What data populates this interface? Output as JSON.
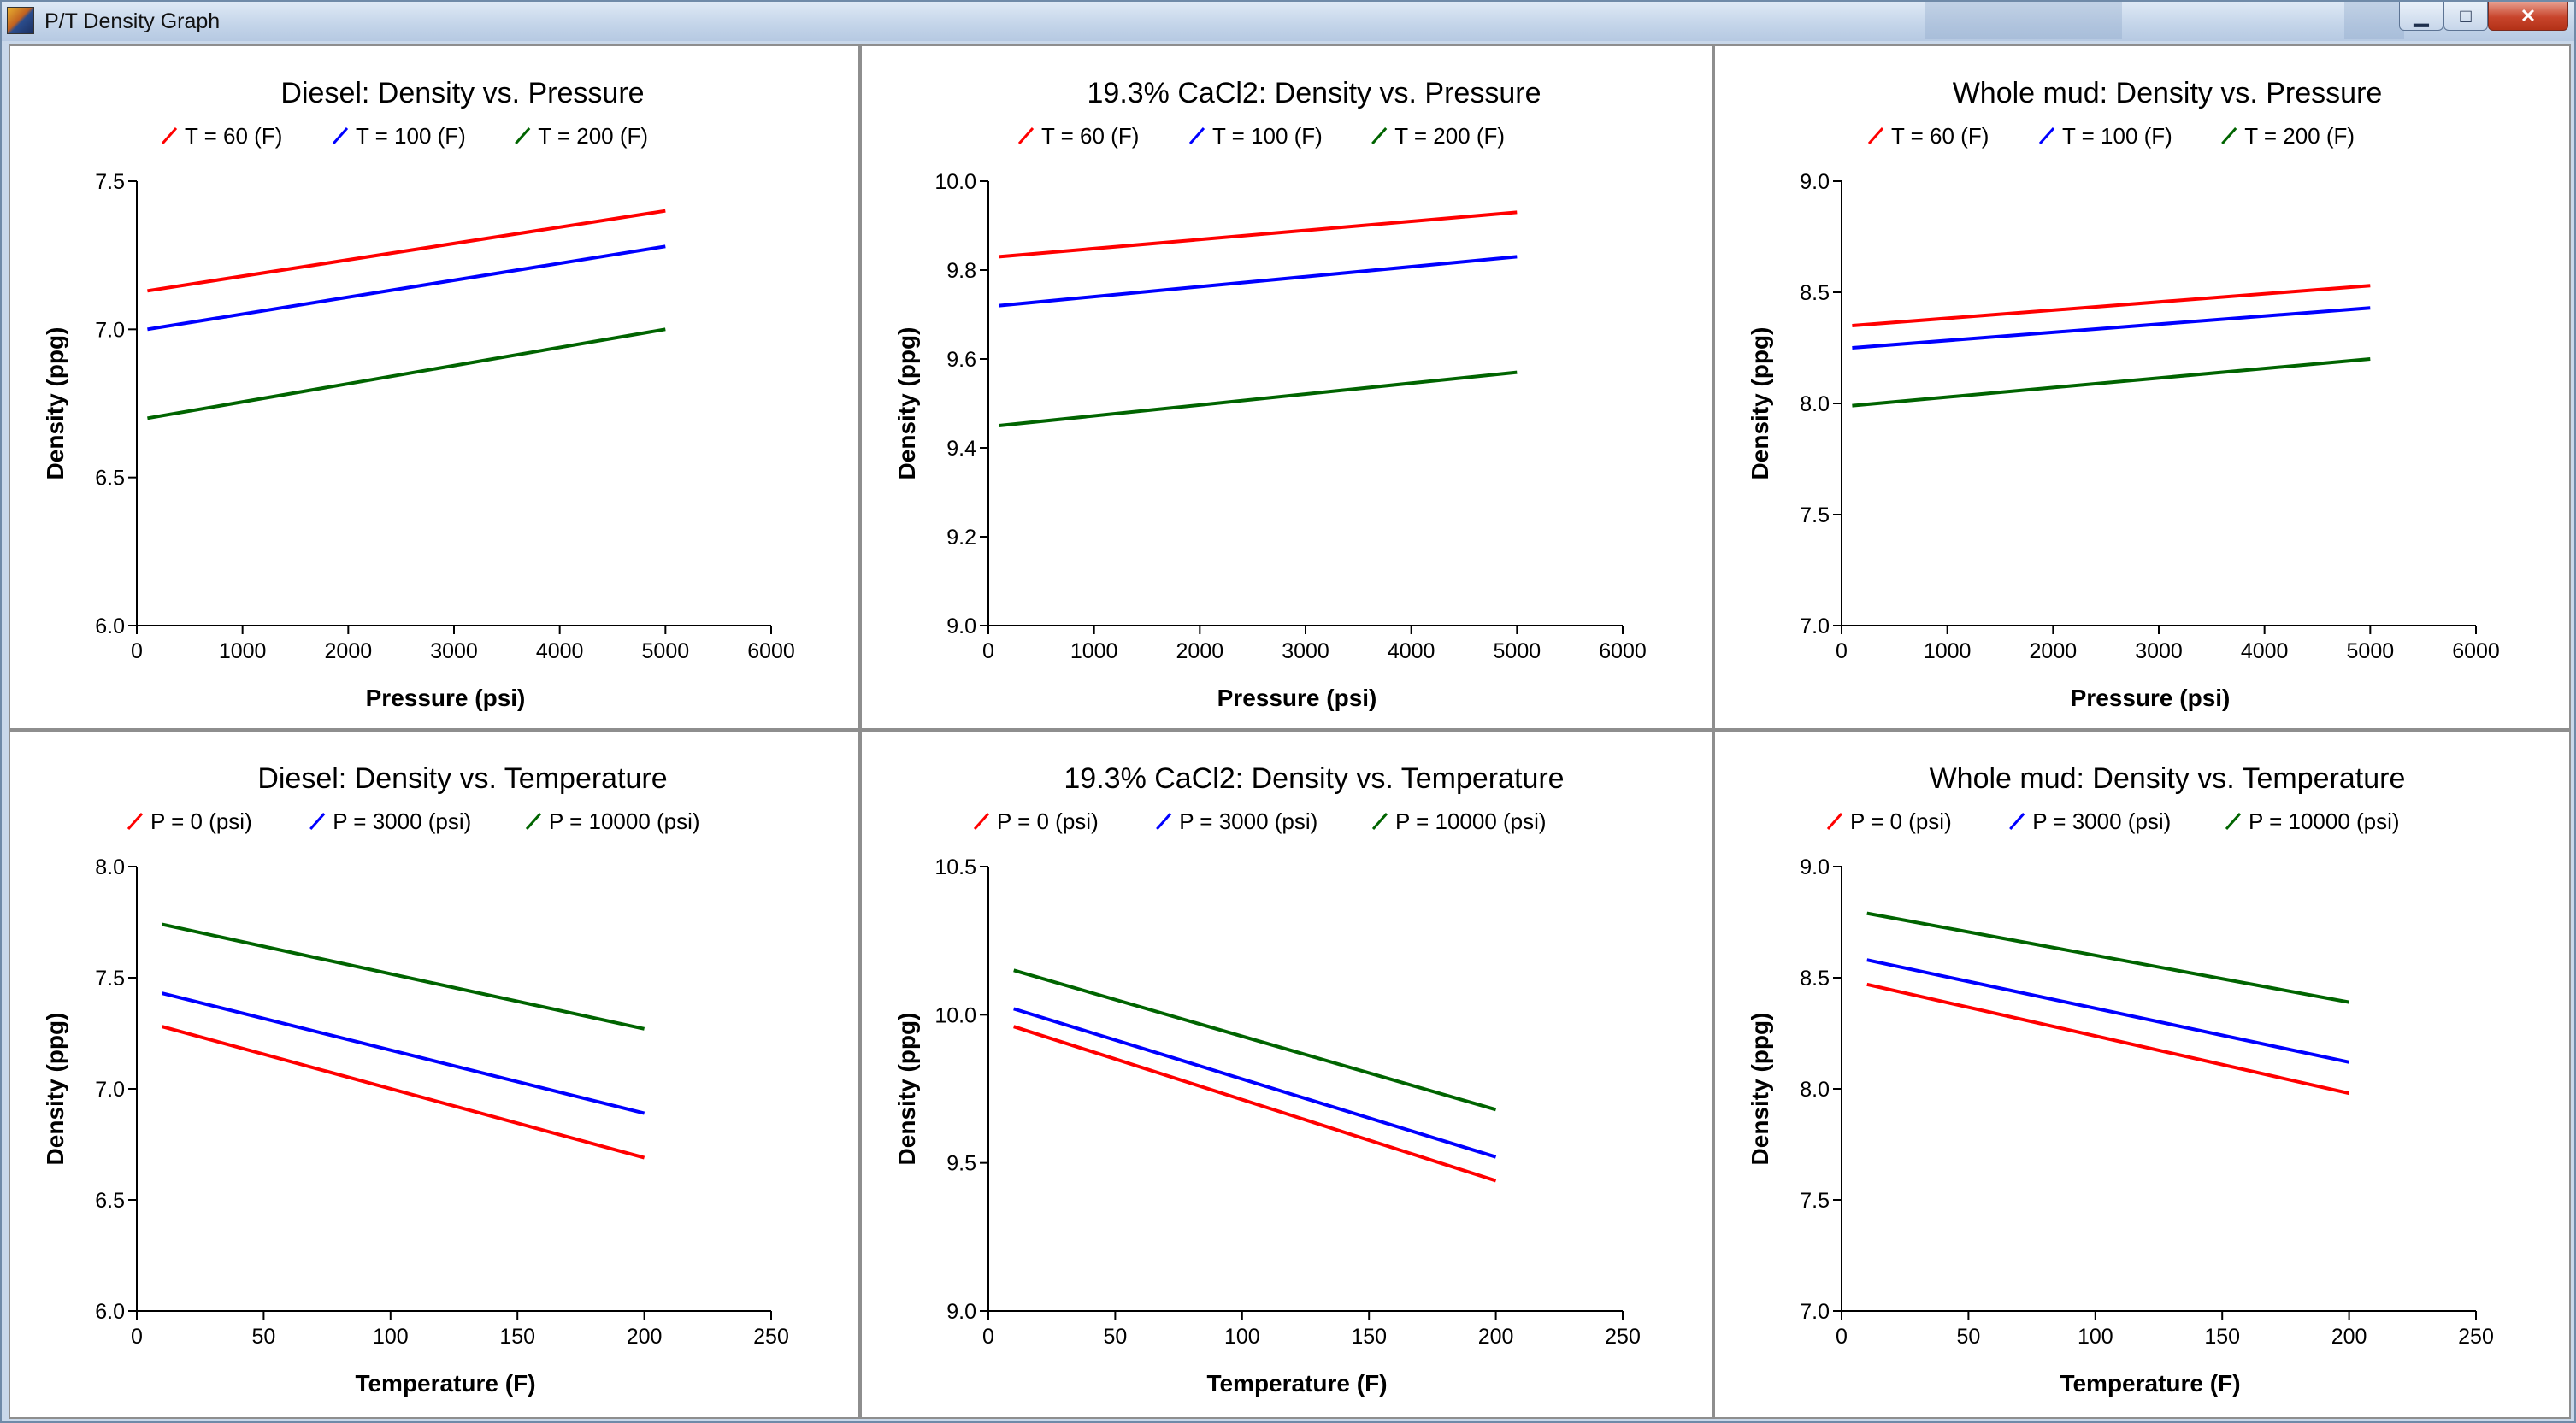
{
  "window": {
    "title": "P/T Density Graph",
    "icon": "app-icon",
    "buttons": [
      {
        "name": "minimize-button",
        "glyph": "▁"
      },
      {
        "name": "maximize-button",
        "glyph": "□"
      },
      {
        "name": "close-button",
        "glyph": "✕"
      }
    ]
  },
  "colors": {
    "red": "#ff0000",
    "blue": "#0000ff",
    "green": "#006400",
    "background": "#ffffff"
  },
  "chart_data": [
    {
      "type": "line",
      "title": "Diesel:  Density vs. Pressure",
      "xlabel": "Pressure (psi)",
      "ylabel": "Density (ppg)",
      "xlim": [
        0,
        6000
      ],
      "ylim": [
        6.0,
        7.5
      ],
      "xticks": [
        "0",
        "1000",
        "2000",
        "3000",
        "4000",
        "5000",
        "6000"
      ],
      "yticks": [
        "6.0",
        "6.5",
        "7.0",
        "7.5"
      ],
      "legend_position": "top",
      "series": [
        {
          "name": "T = 60 (F)",
          "color": "#ff0000",
          "x": [
            100,
            5000
          ],
          "y": [
            7.13,
            7.4
          ]
        },
        {
          "name": "T = 100 (F)",
          "color": "#0000ff",
          "x": [
            100,
            5000
          ],
          "y": [
            7.0,
            7.28
          ]
        },
        {
          "name": "T = 200 (F)",
          "color": "#006400",
          "x": [
            100,
            5000
          ],
          "y": [
            6.7,
            7.0
          ]
        }
      ]
    },
    {
      "type": "line",
      "title": "19.3% CaCl2:  Density vs. Pressure",
      "xlabel": "Pressure (psi)",
      "ylabel": "Density (ppg)",
      "xlim": [
        0,
        6000
      ],
      "ylim": [
        9.0,
        10.0
      ],
      "xticks": [
        "0",
        "1000",
        "2000",
        "3000",
        "4000",
        "5000",
        "6000"
      ],
      "yticks": [
        "9.0",
        "9.2",
        "9.4",
        "9.6",
        "9.8",
        "10.0"
      ],
      "legend_position": "top",
      "series": [
        {
          "name": "T = 60 (F)",
          "color": "#ff0000",
          "x": [
            100,
            5000
          ],
          "y": [
            9.83,
            9.93
          ]
        },
        {
          "name": "T = 100 (F)",
          "color": "#0000ff",
          "x": [
            100,
            5000
          ],
          "y": [
            9.72,
            9.83
          ]
        },
        {
          "name": "T = 200 (F)",
          "color": "#006400",
          "x": [
            100,
            5000
          ],
          "y": [
            9.45,
            9.57
          ]
        }
      ]
    },
    {
      "type": "line",
      "title": "Whole mud:  Density vs. Pressure",
      "xlabel": "Pressure (psi)",
      "ylabel": "Density (ppg)",
      "xlim": [
        0,
        6000
      ],
      "ylim": [
        7.0,
        9.0
      ],
      "xticks": [
        "0",
        "1000",
        "2000",
        "3000",
        "4000",
        "5000",
        "6000"
      ],
      "yticks": [
        "7.0",
        "7.5",
        "8.0",
        "8.5",
        "9.0"
      ],
      "legend_position": "top",
      "series": [
        {
          "name": "T = 60 (F)",
          "color": "#ff0000",
          "x": [
            100,
            5000
          ],
          "y": [
            8.35,
            8.53
          ]
        },
        {
          "name": "T = 100 (F)",
          "color": "#0000ff",
          "x": [
            100,
            5000
          ],
          "y": [
            8.25,
            8.43
          ]
        },
        {
          "name": "T = 200 (F)",
          "color": "#006400",
          "x": [
            100,
            5000
          ],
          "y": [
            7.99,
            8.2
          ]
        }
      ]
    },
    {
      "type": "line",
      "title": "Diesel:  Density vs. Temperature",
      "xlabel": "Temperature (F)",
      "ylabel": "Density (ppg)",
      "xlim": [
        0,
        250
      ],
      "ylim": [
        6.0,
        8.0
      ],
      "xticks": [
        "0",
        "50",
        "100",
        "150",
        "200",
        "250"
      ],
      "yticks": [
        "6.0",
        "6.5",
        "7.0",
        "7.5",
        "8.0"
      ],
      "legend_position": "top",
      "series": [
        {
          "name": "P = 0 (psi)",
          "color": "#ff0000",
          "x": [
            10,
            200
          ],
          "y": [
            7.28,
            6.69
          ]
        },
        {
          "name": "P = 3000 (psi)",
          "color": "#0000ff",
          "x": [
            10,
            200
          ],
          "y": [
            7.43,
            6.89
          ]
        },
        {
          "name": "P = 10000 (psi)",
          "color": "#006400",
          "x": [
            10,
            200
          ],
          "y": [
            7.74,
            7.27
          ]
        }
      ]
    },
    {
      "type": "line",
      "title": "19.3% CaCl2:  Density vs. Temperature",
      "xlabel": "Temperature (F)",
      "ylabel": "Density (ppg)",
      "xlim": [
        0,
        250
      ],
      "ylim": [
        9.0,
        10.5
      ],
      "xticks": [
        "0",
        "50",
        "100",
        "150",
        "200",
        "250"
      ],
      "yticks": [
        "9.0",
        "9.5",
        "10.0",
        "10.5"
      ],
      "legend_position": "top",
      "series": [
        {
          "name": "P = 0 (psi)",
          "color": "#ff0000",
          "x": [
            10,
            200
          ],
          "y": [
            9.96,
            9.44
          ]
        },
        {
          "name": "P = 3000 (psi)",
          "color": "#0000ff",
          "x": [
            10,
            200
          ],
          "y": [
            10.02,
            9.52
          ]
        },
        {
          "name": "P = 10000 (psi)",
          "color": "#006400",
          "x": [
            10,
            200
          ],
          "y": [
            10.15,
            9.68
          ]
        }
      ]
    },
    {
      "type": "line",
      "title": "Whole mud:  Density vs. Temperature",
      "xlabel": "Temperature (F)",
      "ylabel": "Density (ppg)",
      "xlim": [
        0,
        250
      ],
      "ylim": [
        7.0,
        9.0
      ],
      "xticks": [
        "0",
        "50",
        "100",
        "150",
        "200",
        "250"
      ],
      "yticks": [
        "7.0",
        "7.5",
        "8.0",
        "8.5",
        "9.0"
      ],
      "legend_position": "top",
      "series": [
        {
          "name": "P = 0 (psi)",
          "color": "#ff0000",
          "x": [
            10,
            200
          ],
          "y": [
            8.47,
            7.98
          ]
        },
        {
          "name": "P = 3000 (psi)",
          "color": "#0000ff",
          "x": [
            10,
            200
          ],
          "y": [
            8.58,
            8.12
          ]
        },
        {
          "name": "P = 10000 (psi)",
          "color": "#006400",
          "x": [
            10,
            200
          ],
          "y": [
            8.79,
            8.39
          ]
        }
      ]
    }
  ]
}
